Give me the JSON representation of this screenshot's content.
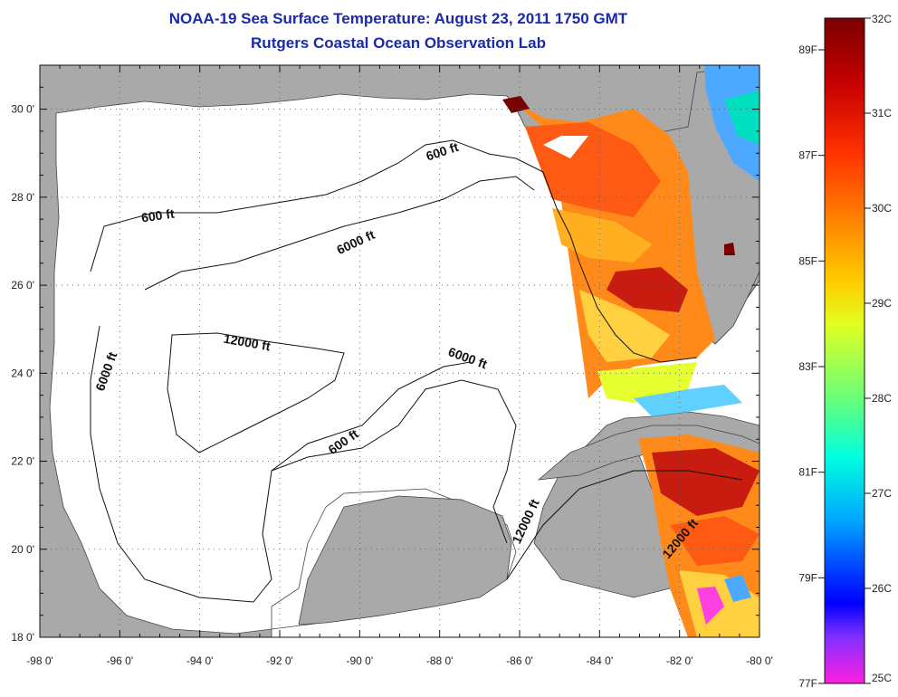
{
  "title": {
    "line1": "NOAA-19 Sea Surface Temperature:  August 23, 2011 1750 GMT",
    "line2": "Rutgers Coastal Ocean Observation Lab"
  },
  "map": {
    "lon_range": [
      -98,
      -80
    ],
    "lat_range": [
      18,
      31
    ],
    "x_ticks": [
      "-98 0'",
      "-96 0'",
      "-94 0'",
      "-92 0'",
      "-90 0'",
      "-88 0'",
      "-86 0'",
      "-84 0'",
      "-82 0'",
      "-80 0'"
    ],
    "y_ticks": [
      "30 0'",
      "28 0'",
      "26 0'",
      "24 0'",
      "22 0'",
      "20 0'",
      "18 0'"
    ],
    "grid": "dotted",
    "colors": {
      "land": "#a9a9a9",
      "ocean": "#ffffff",
      "contour": "#111111"
    },
    "contour_labels": [
      "600 ft",
      "600 ft",
      "6000 ft",
      "6000 ft",
      "12000 ft",
      "6000 ft",
      "600 ft",
      "12000 ft",
      "12000 ft"
    ]
  },
  "colorbar": {
    "celsius_labels": [
      "32C",
      "31C",
      "30C",
      "29C",
      "28C",
      "27C",
      "26C",
      "25C"
    ],
    "fahrenheit_labels": [
      "89F",
      "87F",
      "85F",
      "83F",
      "81F",
      "79F",
      "77F"
    ],
    "range_c": [
      25,
      32
    ],
    "gradient_colors": [
      "#7a0000",
      "#c80000",
      "#ff3000",
      "#ff8000",
      "#ffd000",
      "#e0ff20",
      "#60ff80",
      "#00ffe0",
      "#00a0ff",
      "#0030ff",
      "#0000ff",
      "#8030ff",
      "#ff20e0"
    ]
  }
}
